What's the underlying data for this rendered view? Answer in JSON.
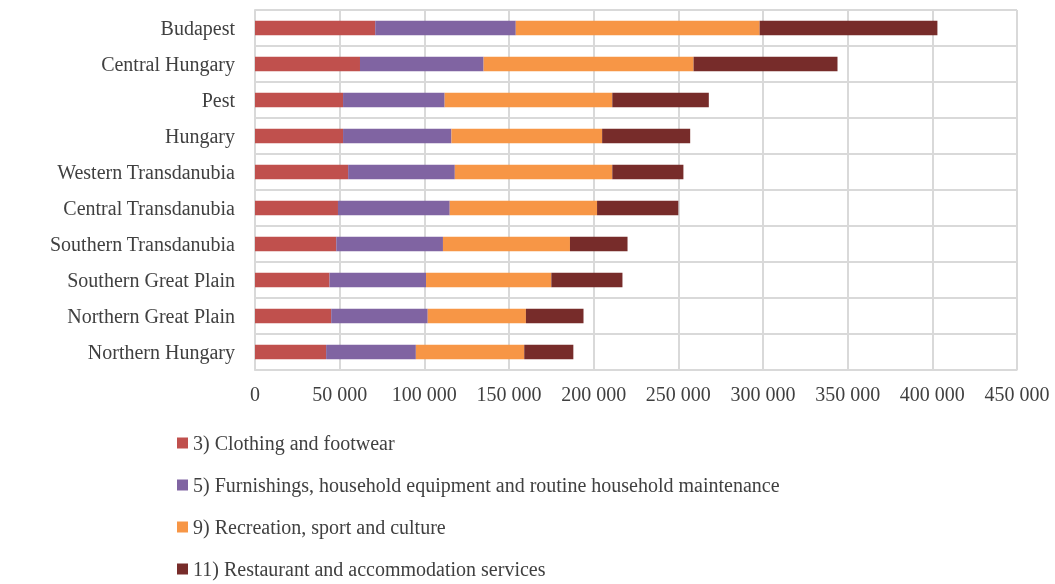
{
  "chart_data": {
    "type": "bar",
    "orientation": "horizontal",
    "stacked": true,
    "categories": [
      "Budapest",
      "Central Hungary",
      "Pest",
      "Hungary",
      "Western Transdanubia",
      "Central Transdanubia",
      "Southern Transdanubia",
      "Southern Great Plain",
      "Northern Great Plain",
      "Northern Hungary"
    ],
    "series": [
      {
        "name": "3) Clothing and footwear",
        "color": "#c0504d",
        "values": [
          71000,
          62000,
          52000,
          52000,
          55000,
          49000,
          48000,
          44000,
          45000,
          42000
        ]
      },
      {
        "name": "5) Furnishings, household equipment and routine household maintenance",
        "color": "#8064a2",
        "values": [
          83000,
          73000,
          60000,
          64000,
          63000,
          66000,
          63000,
          57000,
          57000,
          53000
        ]
      },
      {
        "name": "9) Recreation, sport and culture",
        "color": "#f79646",
        "values": [
          144000,
          124000,
          99000,
          89000,
          93000,
          87000,
          75000,
          74000,
          58000,
          64000
        ]
      },
      {
        "name": "11) Restaurant and accommodation services",
        "color": "#772c2a",
        "values": [
          105000,
          85000,
          57000,
          52000,
          42000,
          48000,
          34000,
          42000,
          34000,
          29000
        ]
      }
    ],
    "xlim": [
      0,
      450000
    ],
    "xticks": [
      {
        "value": 0,
        "label": "0"
      },
      {
        "value": 50000,
        "label": "50 000"
      },
      {
        "value": 100000,
        "label": "100 000"
      },
      {
        "value": 150000,
        "label": "150 000"
      },
      {
        "value": 200000,
        "label": "200 000"
      },
      {
        "value": 250000,
        "label": "250 000"
      },
      {
        "value": 300000,
        "label": "300 000"
      },
      {
        "value": 350000,
        "label": "350 000"
      },
      {
        "value": 400000,
        "label": "400 000"
      },
      {
        "value": 450000,
        "label": "450 000"
      }
    ],
    "grid": true,
    "legend": "bottom"
  }
}
